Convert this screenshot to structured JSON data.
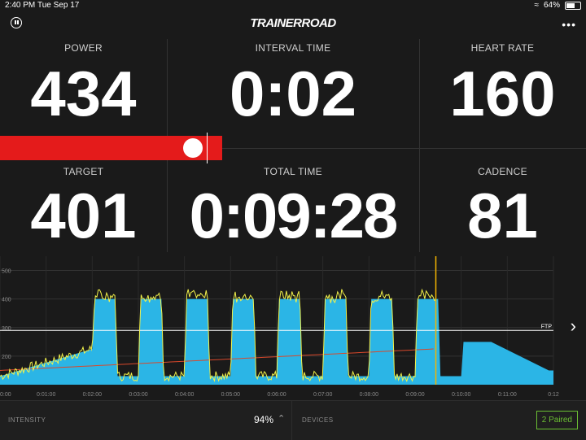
{
  "status_bar": {
    "time": "2:40 PM",
    "date": "Tue Sep 17",
    "battery": "64%",
    "battery_level": 0.64
  },
  "header": {
    "logo": "TRAINERROAD",
    "more_icon": "more-horizontal-icon",
    "pause_icon": "pause-icon"
  },
  "metrics": {
    "power": {
      "label": "POWER",
      "value": "434"
    },
    "interval_time": {
      "label": "INTERVAL TIME",
      "value": "0:02"
    },
    "heart_rate": {
      "label": "HEART RATE",
      "value": "160"
    },
    "target": {
      "label": "TARGET",
      "value": "401"
    },
    "total_time": {
      "label": "TOTAL TIME",
      "value": "0:09:28"
    },
    "cadence": {
      "label": "CADENCE",
      "value": "81"
    }
  },
  "power_bar": {
    "color": "#e41b1b"
  },
  "chart_data": {
    "type": "area",
    "y_ticks": [
      "500",
      "400",
      "300",
      "200"
    ],
    "x_ticks": [
      "0:00",
      "0:01:00",
      "0:02:00",
      "0:03:00",
      "0:04:00",
      "0:05:00",
      "0:06:00",
      "0:07:00",
      "0:08:00",
      "0:09:00",
      "0:10:00",
      "0:11:00",
      "0:12"
    ],
    "ftp_label": "FTP",
    "ftp_value": 290,
    "xlim": [
      0,
      12
    ],
    "ylim": [
      100,
      550
    ],
    "current_time": 9.45,
    "target_segments": [
      [
        0,
        130
      ],
      [
        2,
        225
      ],
      [
        2.05,
        400
      ],
      [
        2.5,
        400
      ],
      [
        2.55,
        130
      ],
      [
        3,
        130
      ],
      [
        3.05,
        400
      ],
      [
        3.5,
        400
      ],
      [
        3.55,
        130
      ],
      [
        4,
        130
      ],
      [
        4.05,
        400
      ],
      [
        4.5,
        400
      ],
      [
        4.55,
        130
      ],
      [
        5,
        130
      ],
      [
        5.05,
        400
      ],
      [
        5.5,
        400
      ],
      [
        5.55,
        130
      ],
      [
        6,
        130
      ],
      [
        6.05,
        400
      ],
      [
        6.5,
        400
      ],
      [
        6.55,
        130
      ],
      [
        7,
        130
      ],
      [
        7.05,
        400
      ],
      [
        7.5,
        400
      ],
      [
        7.55,
        130
      ],
      [
        8,
        130
      ],
      [
        8.05,
        400
      ],
      [
        8.5,
        400
      ],
      [
        8.55,
        130
      ],
      [
        9,
        130
      ],
      [
        9.05,
        400
      ],
      [
        9.5,
        400
      ],
      [
        9.55,
        130
      ],
      [
        10.0,
        130
      ],
      [
        10.05,
        250
      ],
      [
        10.65,
        250
      ],
      [
        11.9,
        150
      ]
    ],
    "colors": {
      "target": "#2bb5e6",
      "power": "#f2f24a",
      "heart_rate": "#d9482b",
      "cursor": "#f4b400"
    }
  },
  "footer": {
    "intensity_label": "INTENSITY",
    "intensity_value": "94%",
    "devices_label": "DEVICES",
    "paired": "2 Paired"
  }
}
